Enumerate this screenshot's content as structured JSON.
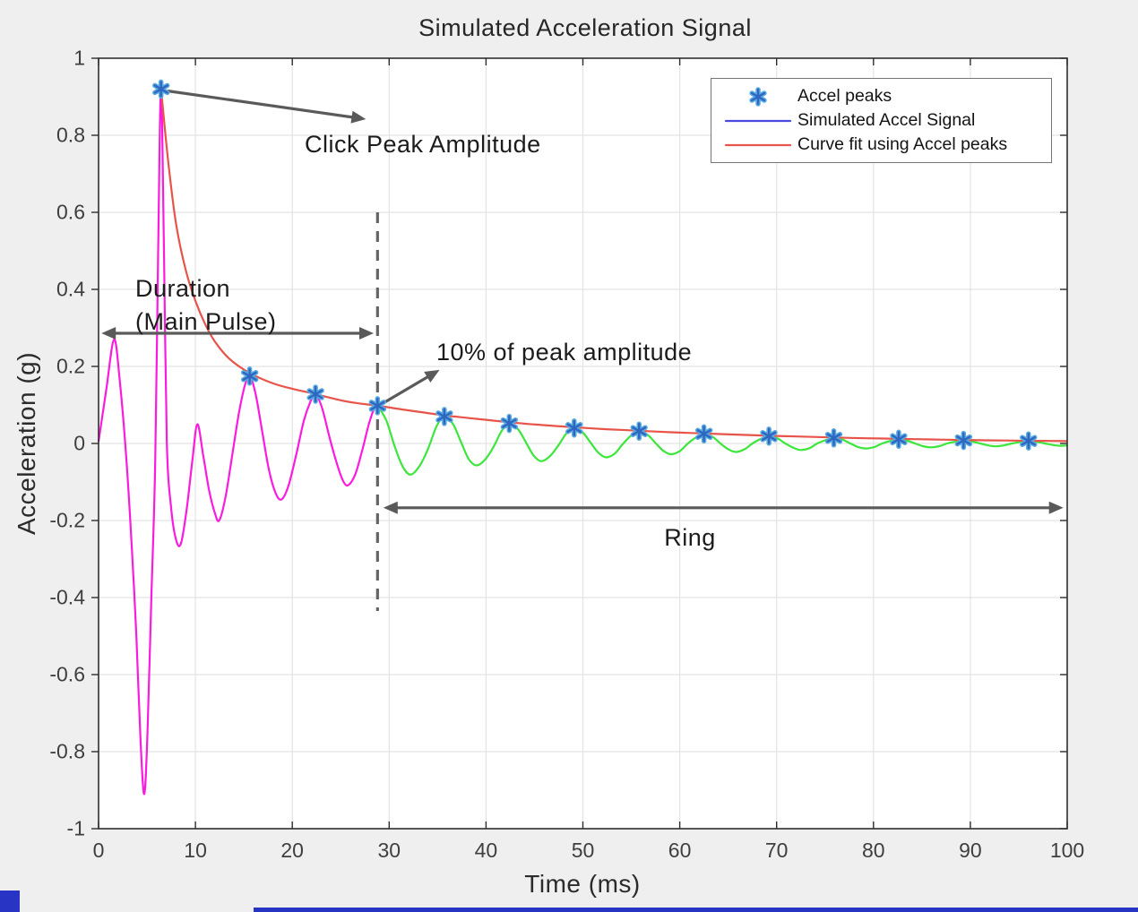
{
  "chart_data": {
    "type": "line",
    "title": "Simulated Acceleration Signal",
    "xlabel": "Time (ms)",
    "ylabel": "Acceleration (g)",
    "xlim": [
      0,
      100
    ],
    "ylim": [
      -1,
      1
    ],
    "x_ticks": [
      0,
      10,
      20,
      30,
      40,
      50,
      60,
      70,
      80,
      90,
      100
    ],
    "y_ticks": [
      1,
      0.8,
      0.6,
      0.4,
      0.2,
      0,
      -0.2,
      -0.4,
      -0.6,
      -0.8,
      -1
    ],
    "grid": true,
    "grid_color": "#e3e3e3",
    "axes_color": "#2e2e2e",
    "plot_bg": "#ffffff",
    "figure_bg": "#efefef",
    "legend": {
      "position": "top-right",
      "items": [
        {
          "label": "Accel peaks",
          "type": "marker",
          "color": "#2e66c0",
          "halo": "#58abe0"
        },
        {
          "label": "Simulated Accel Signal",
          "type": "line",
          "color": "#4a4ae0"
        },
        {
          "label": "Curve fit using Accel peaks",
          "type": "line",
          "color": "#e8534a"
        }
      ]
    },
    "series": [
      {
        "name": "main-pulse-signal",
        "color": "#fb1be0",
        "points": [
          [
            0,
            0.005
          ],
          [
            0.8,
            0.14
          ],
          [
            1.6,
            0.27
          ],
          [
            2.2,
            0.16
          ],
          [
            2.9,
            -0.05
          ],
          [
            3.5,
            -0.3
          ],
          [
            3.9,
            -0.5
          ],
          [
            4.35,
            -0.78
          ],
          [
            4.72,
            -0.91
          ],
          [
            5.05,
            -0.75
          ],
          [
            5.45,
            -0.4
          ],
          [
            5.85,
            -0.05
          ],
          [
            6.15,
            0.5
          ],
          [
            6.45,
            0.92
          ],
          [
            6.75,
            0.5
          ],
          [
            7.05,
            0.0
          ],
          [
            7.5,
            -0.17
          ],
          [
            8.0,
            -0.25
          ],
          [
            8.5,
            -0.26
          ],
          [
            9.1,
            -0.17
          ],
          [
            9.7,
            -0.04
          ],
          [
            10.2,
            0.05
          ],
          [
            10.8,
            -0.03
          ],
          [
            11.4,
            -0.12
          ],
          [
            12.0,
            -0.18
          ],
          [
            12.45,
            -0.2
          ],
          [
            13.1,
            -0.14
          ],
          [
            13.8,
            -0.03
          ],
          [
            14.5,
            0.08
          ],
          [
            15.1,
            0.15
          ],
          [
            15.6,
            0.175
          ],
          [
            16.2,
            0.13
          ],
          [
            16.9,
            0.03
          ],
          [
            17.6,
            -0.07
          ],
          [
            18.3,
            -0.13
          ],
          [
            18.9,
            -0.145
          ],
          [
            19.6,
            -0.11
          ],
          [
            20.4,
            -0.03
          ],
          [
            21.2,
            0.06
          ],
          [
            21.9,
            0.11
          ],
          [
            22.4,
            0.128
          ],
          [
            23.1,
            0.09
          ],
          [
            23.9,
            0.01
          ],
          [
            24.7,
            -0.06
          ],
          [
            25.3,
            -0.1
          ],
          [
            25.8,
            -0.108
          ],
          [
            26.5,
            -0.08
          ],
          [
            27.2,
            -0.02
          ],
          [
            27.9,
            0.05
          ],
          [
            28.45,
            0.09
          ],
          [
            28.8,
            0.098
          ]
        ]
      },
      {
        "name": "ring-signal",
        "color": "#3ce63c",
        "points": [
          [
            28.8,
            0.098
          ],
          [
            29.7,
            0.06
          ],
          [
            30.6,
            -0.01
          ],
          [
            31.4,
            -0.06
          ],
          [
            32.2,
            -0.081
          ],
          [
            33.1,
            -0.06
          ],
          [
            34.0,
            -0.015
          ],
          [
            34.9,
            0.045
          ],
          [
            35.7,
            0.07
          ],
          [
            36.6,
            0.05
          ],
          [
            37.4,
            0.005
          ],
          [
            38.2,
            -0.04
          ],
          [
            39.0,
            -0.057
          ],
          [
            39.9,
            -0.042
          ],
          [
            40.8,
            -0.008
          ],
          [
            41.6,
            0.032
          ],
          [
            42.4,
            0.052
          ],
          [
            43.3,
            0.037
          ],
          [
            44.1,
            0.004
          ],
          [
            44.9,
            -0.031
          ],
          [
            45.7,
            -0.046
          ],
          [
            46.6,
            -0.033
          ],
          [
            47.5,
            -0.004
          ],
          [
            48.3,
            0.026
          ],
          [
            49.1,
            0.04
          ],
          [
            50.0,
            0.028
          ],
          [
            50.8,
            0.002
          ],
          [
            51.6,
            -0.024
          ],
          [
            52.4,
            -0.036
          ],
          [
            53.3,
            -0.026
          ],
          [
            54.1,
            -0.002
          ],
          [
            55.0,
            0.021
          ],
          [
            55.8,
            0.032
          ],
          [
            56.7,
            0.022
          ],
          [
            57.5,
            0.001
          ],
          [
            58.3,
            -0.019
          ],
          [
            59.1,
            -0.028
          ],
          [
            60.0,
            -0.02
          ],
          [
            60.8,
            -0.001
          ],
          [
            61.7,
            0.016
          ],
          [
            62.5,
            0.025
          ],
          [
            63.4,
            0.017
          ],
          [
            64.2,
            0.0
          ],
          [
            65.0,
            -0.015
          ],
          [
            65.8,
            -0.022
          ],
          [
            66.7,
            -0.015
          ],
          [
            67.5,
            0.0
          ],
          [
            68.4,
            0.012
          ],
          [
            69.2,
            0.019
          ],
          [
            70.1,
            0.013
          ],
          [
            70.9,
            0.0
          ],
          [
            71.7,
            -0.011
          ],
          [
            72.5,
            -0.017
          ],
          [
            73.4,
            -0.012
          ],
          [
            74.2,
            0.0
          ],
          [
            75.1,
            0.009
          ],
          [
            75.9,
            0.0145
          ],
          [
            76.8,
            0.01
          ],
          [
            77.6,
            0.0
          ],
          [
            78.4,
            -0.009
          ],
          [
            79.2,
            -0.013
          ],
          [
            80.1,
            -0.009
          ],
          [
            80.9,
            0.0
          ],
          [
            81.8,
            0.007
          ],
          [
            82.6,
            0.011
          ],
          [
            83.5,
            0.007
          ],
          [
            84.3,
            0.0
          ],
          [
            85.1,
            -0.007
          ],
          [
            85.9,
            -0.01
          ],
          [
            86.8,
            -0.007
          ],
          [
            87.6,
            0.0
          ],
          [
            88.5,
            0.005
          ],
          [
            89.3,
            0.008
          ],
          [
            90.2,
            0.005
          ],
          [
            91.0,
            0.0
          ],
          [
            91.8,
            -0.005
          ],
          [
            92.6,
            -0.0075
          ],
          [
            93.5,
            -0.005
          ],
          [
            94.3,
            0.0
          ],
          [
            95.2,
            0.004
          ],
          [
            96.0,
            0.0065
          ],
          [
            96.9,
            0.004
          ],
          [
            97.7,
            0.0
          ],
          [
            98.5,
            -0.004
          ],
          [
            99.3,
            -0.006
          ],
          [
            100,
            -0.005
          ]
        ]
      },
      {
        "name": "curve-fit",
        "color": "#e8534a",
        "points": [
          [
            6.45,
            0.92
          ],
          [
            7.2,
            0.73
          ],
          [
            8,
            0.57
          ],
          [
            9,
            0.45
          ],
          [
            10,
            0.37
          ],
          [
            11,
            0.31
          ],
          [
            12,
            0.265
          ],
          [
            13.5,
            0.22
          ],
          [
            15.6,
            0.183
          ],
          [
            18,
            0.156
          ],
          [
            20,
            0.142
          ],
          [
            22.4,
            0.128
          ],
          [
            25,
            0.112
          ],
          [
            26.9,
            0.104
          ],
          [
            28.8,
            0.098
          ],
          [
            32.2,
            0.085
          ],
          [
            35.7,
            0.073
          ],
          [
            39,
            0.064
          ],
          [
            42.4,
            0.055
          ],
          [
            45.7,
            0.048
          ],
          [
            49.1,
            0.042
          ],
          [
            52.4,
            0.037
          ],
          [
            55.8,
            0.033
          ],
          [
            59.1,
            0.029
          ],
          [
            62.5,
            0.026
          ],
          [
            65.8,
            0.023
          ],
          [
            69.2,
            0.02
          ],
          [
            72.5,
            0.018
          ],
          [
            75.9,
            0.0155
          ],
          [
            79.2,
            0.0135
          ],
          [
            82.6,
            0.012
          ],
          [
            85.9,
            0.0105
          ],
          [
            89.3,
            0.009
          ],
          [
            92.6,
            0.008
          ],
          [
            96,
            0.007
          ],
          [
            100,
            0.006
          ]
        ]
      }
    ],
    "peaks": {
      "color": "#2e66c0",
      "halo": "#58abe0",
      "points": [
        [
          6.45,
          0.92
        ],
        [
          15.6,
          0.175
        ],
        [
          22.4,
          0.128
        ],
        [
          28.8,
          0.098
        ],
        [
          35.7,
          0.07
        ],
        [
          42.4,
          0.052
        ],
        [
          49.1,
          0.04
        ],
        [
          55.8,
          0.032
        ],
        [
          62.5,
          0.025
        ],
        [
          69.2,
          0.019
        ],
        [
          75.9,
          0.0145
        ],
        [
          82.6,
          0.011
        ],
        [
          89.3,
          0.008
        ],
        [
          96.0,
          0.0065
        ]
      ]
    },
    "annotations": {
      "color": "#5a5a5a",
      "click_peak": {
        "text": "Click Peak Amplitude"
      },
      "duration": {
        "line1": "Duration",
        "line2": "(Main Pulse)"
      },
      "pct": {
        "text": "10% of peak amplitude"
      },
      "ring": {
        "text": "Ring"
      },
      "dashed_line": {
        "t": 28.8,
        "a_from": 0.6,
        "a_to": -0.435
      },
      "arrows": [
        {
          "name": "click-peak-arrow",
          "from_t": 7.1,
          "from_a": 0.915,
          "to_t": 27.6,
          "to_a": 0.842,
          "double": false
        },
        {
          "name": "duration-arrow",
          "from_t": 0.3,
          "from_a": 0.286,
          "to_t": 28.4,
          "to_a": 0.286,
          "double": true
        },
        {
          "name": "pct-arrow",
          "from_t": 29.4,
          "from_a": 0.105,
          "to_t": 35.2,
          "to_a": 0.191,
          "double": false
        },
        {
          "name": "ring-arrow",
          "from_t": 29.4,
          "from_a": -0.167,
          "to_t": 99.6,
          "to_a": -0.167,
          "double": true
        }
      ]
    }
  }
}
